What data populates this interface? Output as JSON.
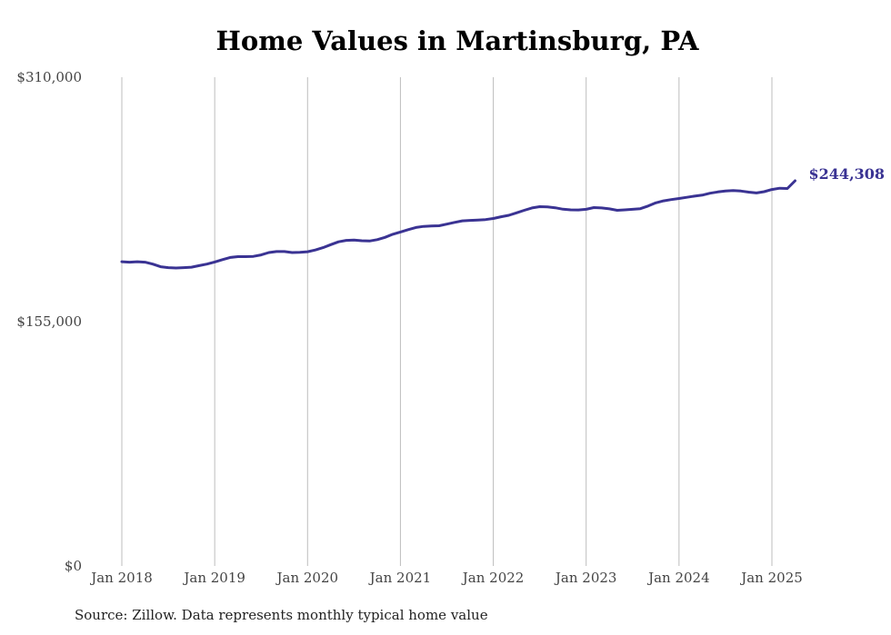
{
  "chart_data": {
    "type": "line",
    "title": "Home Values in Martinsburg, PA",
    "source": "Source: Zillow. Data represents monthly typical home value",
    "ylim": [
      0,
      310000
    ],
    "y_ticks": [
      "$0",
      "$155,000",
      "$310,000"
    ],
    "y_tick_values": [
      0,
      155000,
      310000
    ],
    "x_ticks": [
      "Jan 2018",
      "Jan 2019",
      "Jan 2020",
      "Jan 2021",
      "Jan 2022",
      "Jan 2023",
      "Jan 2024",
      "Jan 2025"
    ],
    "x_tick_dates": [
      "2018-01",
      "2019-01",
      "2020-01",
      "2021-01",
      "2022-01",
      "2023-01",
      "2024-01",
      "2025-01"
    ],
    "grid": "vertical",
    "line_color": "#3a3393",
    "end_label": "$244,308",
    "series": [
      {
        "x": [
          "2018-01",
          "2018-02",
          "2018-03",
          "2018-04",
          "2018-05",
          "2018-06",
          "2018-07",
          "2018-08",
          "2018-09",
          "2018-10",
          "2018-11",
          "2018-12",
          "2019-01",
          "2019-02",
          "2019-03",
          "2019-04",
          "2019-05",
          "2019-06",
          "2019-07",
          "2019-08",
          "2019-09",
          "2019-10",
          "2019-11",
          "2019-12",
          "2020-01",
          "2020-02",
          "2020-03",
          "2020-04",
          "2020-05",
          "2020-06",
          "2020-07",
          "2020-08",
          "2020-09",
          "2020-10",
          "2020-11",
          "2020-12",
          "2021-01",
          "2021-02",
          "2021-03",
          "2021-04",
          "2021-05",
          "2021-06",
          "2021-07",
          "2021-08",
          "2021-09",
          "2021-10",
          "2021-11",
          "2021-12",
          "2022-01",
          "2022-02",
          "2022-03",
          "2022-04",
          "2022-05",
          "2022-06",
          "2022-07",
          "2022-08",
          "2022-09",
          "2022-10",
          "2022-11",
          "2022-12",
          "2023-01",
          "2023-02",
          "2023-03",
          "2023-04",
          "2023-05",
          "2023-06",
          "2023-07",
          "2023-08",
          "2023-09",
          "2023-10",
          "2023-11",
          "2023-12",
          "2024-01",
          "2024-02",
          "2024-03",
          "2024-04",
          "2024-05",
          "2024-06",
          "2024-07",
          "2024-08",
          "2024-09",
          "2024-10",
          "2024-11",
          "2024-12",
          "2025-01",
          "2025-02",
          "2025-03",
          "2025-04"
        ],
        "values": [
          193000,
          192700,
          193000,
          192700,
          191500,
          189800,
          189200,
          189000,
          189200,
          189500,
          190500,
          191500,
          192800,
          194300,
          195700,
          196200,
          196200,
          196400,
          197300,
          198800,
          199400,
          199400,
          198800,
          198900,
          199300,
          200400,
          201900,
          203800,
          205600,
          206500,
          206700,
          206300,
          206100,
          207000,
          208400,
          210400,
          211800,
          213300,
          214700,
          215400,
          215600,
          215800,
          216800,
          217900,
          218900,
          219200,
          219400,
          219700,
          220400,
          221500,
          222400,
          224000,
          225600,
          227100,
          227900,
          227700,
          227200,
          226300,
          225900,
          225800,
          226200,
          227300,
          227100,
          226500,
          225600,
          225900,
          226200,
          226600,
          228300,
          230300,
          231600,
          232400,
          233100,
          233800,
          234600,
          235200,
          236400,
          237200,
          237800,
          238100,
          237800,
          237100,
          236600,
          237400,
          238800,
          239600,
          239400,
          244308
        ]
      }
    ]
  }
}
